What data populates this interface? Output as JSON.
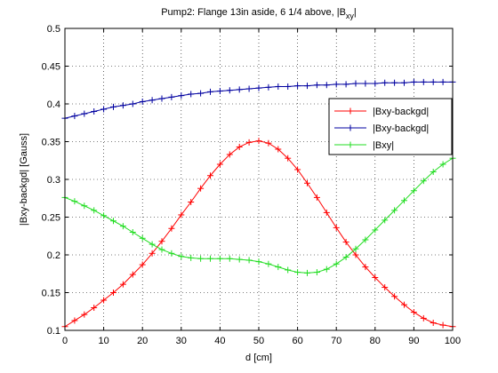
{
  "chart_data": {
    "type": "line",
    "title_main": "Pump2: Flange 13in aside, 6 1/4 above, |B",
    "title_sub": "xy",
    "title_end": "|",
    "xlabel": "d [cm]",
    "ylabel": "|Bxy-backgd| [Gauss]",
    "xlim": [
      0,
      100
    ],
    "ylim": [
      0.1,
      0.5
    ],
    "xticks": [
      0,
      10,
      20,
      30,
      40,
      50,
      60,
      70,
      80,
      90,
      100
    ],
    "yticks": [
      0.1,
      0.15,
      0.2,
      0.25,
      0.3,
      0.35,
      0.4,
      0.45,
      0.5
    ],
    "ytick_labels": [
      "0.1",
      "0.15",
      "0.2",
      "0.25",
      "0.3",
      "0.35",
      "0.4",
      "0.45",
      "0.5"
    ],
    "grid": true,
    "legend_position": "right",
    "x": [
      0,
      2.5,
      5,
      7.5,
      10,
      12.5,
      15,
      17.5,
      20,
      22.5,
      25,
      27.5,
      30,
      32.5,
      35,
      37.5,
      40,
      42.5,
      45,
      47.5,
      50,
      52.5,
      55,
      57.5,
      60,
      62.5,
      65,
      67.5,
      70,
      72.5,
      75,
      77.5,
      80,
      82.5,
      85,
      87.5,
      90,
      92.5,
      95,
      97.5,
      100
    ],
    "series": [
      {
        "name": "|Bxy-backgd|",
        "color": "#ff0000",
        "values": [
          0.105,
          0.113,
          0.121,
          0.13,
          0.14,
          0.15,
          0.161,
          0.174,
          0.187,
          0.202,
          0.218,
          0.235,
          0.253,
          0.27,
          0.288,
          0.305,
          0.32,
          0.333,
          0.343,
          0.349,
          0.351,
          0.348,
          0.34,
          0.328,
          0.313,
          0.295,
          0.276,
          0.256,
          0.236,
          0.217,
          0.2,
          0.184,
          0.17,
          0.157,
          0.145,
          0.134,
          0.124,
          0.116,
          0.11,
          0.107,
          0.105
        ]
      },
      {
        "name": "|Bxy-backgd|",
        "color": "#0000a0",
        "values": [
          0.381,
          0.384,
          0.387,
          0.39,
          0.393,
          0.396,
          0.398,
          0.4,
          0.403,
          0.405,
          0.407,
          0.409,
          0.411,
          0.413,
          0.414,
          0.416,
          0.417,
          0.418,
          0.419,
          0.42,
          0.421,
          0.422,
          0.423,
          0.423,
          0.424,
          0.424,
          0.425,
          0.425,
          0.426,
          0.426,
          0.427,
          0.427,
          0.427,
          0.428,
          0.428,
          0.428,
          0.429,
          0.429,
          0.429,
          0.429,
          0.429
        ]
      },
      {
        "name": "|Bxy|",
        "color": "#22dd22",
        "values": [
          0.276,
          0.271,
          0.265,
          0.259,
          0.252,
          0.245,
          0.238,
          0.23,
          0.222,
          0.214,
          0.207,
          0.202,
          0.198,
          0.196,
          0.195,
          0.195,
          0.195,
          0.195,
          0.194,
          0.193,
          0.191,
          0.188,
          0.184,
          0.18,
          0.177,
          0.176,
          0.177,
          0.181,
          0.188,
          0.197,
          0.208,
          0.22,
          0.233,
          0.246,
          0.259,
          0.272,
          0.285,
          0.298,
          0.31,
          0.32,
          0.328
        ]
      }
    ]
  }
}
